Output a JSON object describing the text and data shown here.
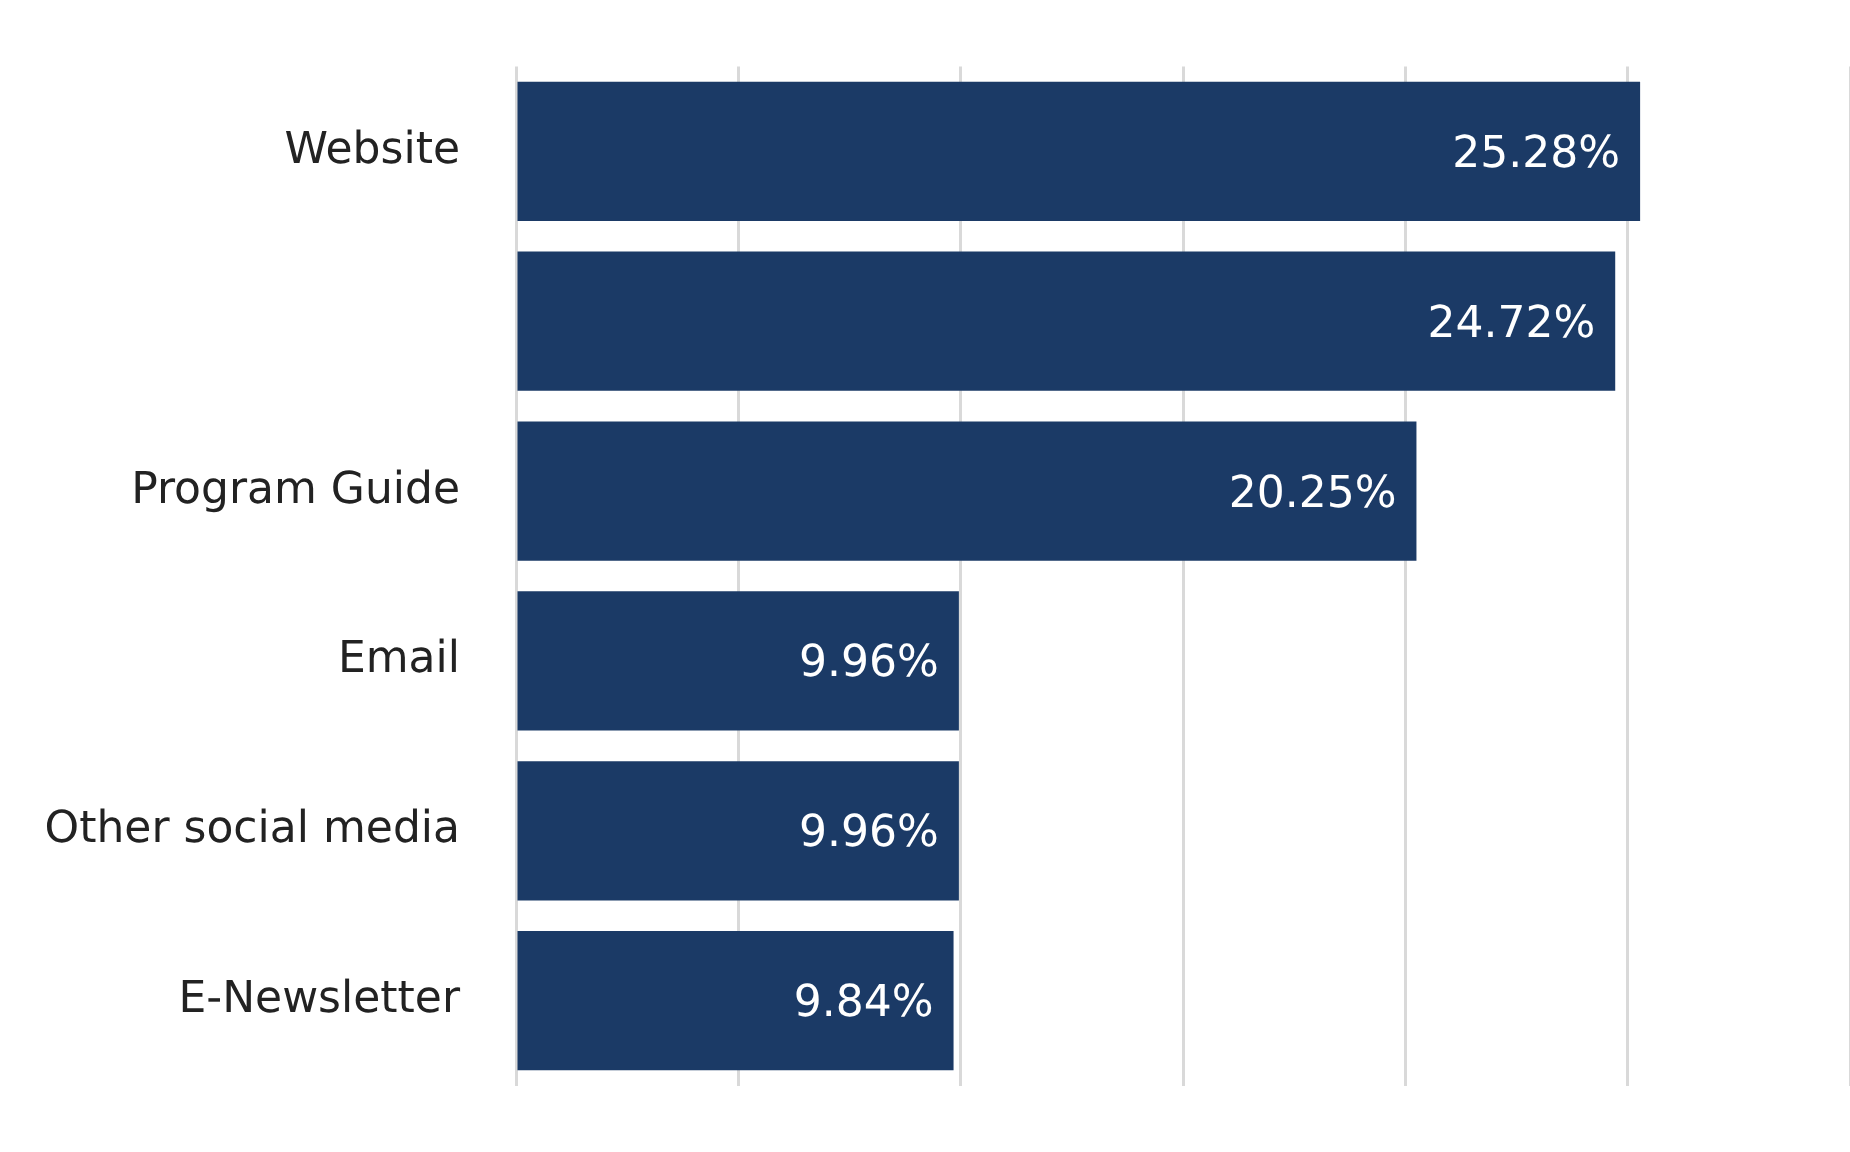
{
  "chart_data": {
    "type": "bar",
    "orientation": "horizontal",
    "categories": [
      "Website",
      null,
      "Program Guide",
      "Email",
      "Other social media",
      "E-Newsletter"
    ],
    "values": [
      25.28,
      24.72,
      20.25,
      9.96,
      9.96,
      9.84
    ],
    "value_labels": [
      "25.28%",
      "24.72%",
      "20.25%",
      "9.96%",
      "9.96%",
      "9.84%"
    ],
    "color": "#1b3a66",
    "xlim": [
      0,
      30
    ],
    "xticks": [
      {
        "value": 0,
        "label": null
      },
      {
        "value": 5,
        "label": null
      },
      {
        "value": 10,
        "label": null
      },
      {
        "value": 15,
        "label": null
      },
      {
        "value": 20,
        "label": null
      },
      {
        "value": 25,
        "label": null
      },
      {
        "value": 30,
        "label": null
      }
    ],
    "grid": "x",
    "tick_labels": "y",
    "legend": false
  }
}
